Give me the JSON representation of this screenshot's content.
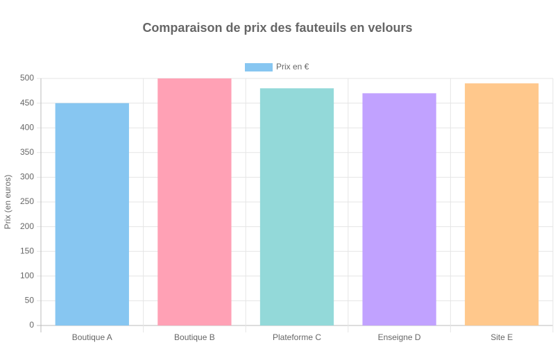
{
  "chart_data": {
    "type": "bar",
    "title": "Comparaison de prix des fauteuils en velours",
    "y_label": "Prix (en euros)",
    "categories": [
      "Boutique A",
      "Boutique B",
      "Plateforme C",
      "Enseigne D",
      "Site E"
    ],
    "series": [
      {
        "name": "Prix en €",
        "values": [
          450,
          500,
          480,
          470,
          490
        ],
        "colors": [
          "#87c6f1",
          "#ffa1b5",
          "#93d9d9",
          "#c1a2ff",
          "#ffc88c"
        ]
      }
    ],
    "ylim": [
      0,
      500
    ],
    "yticks": [
      0,
      50,
      100,
      150,
      200,
      250,
      300,
      350,
      400,
      450,
      500
    ],
    "grid": true,
    "legend": "top"
  }
}
